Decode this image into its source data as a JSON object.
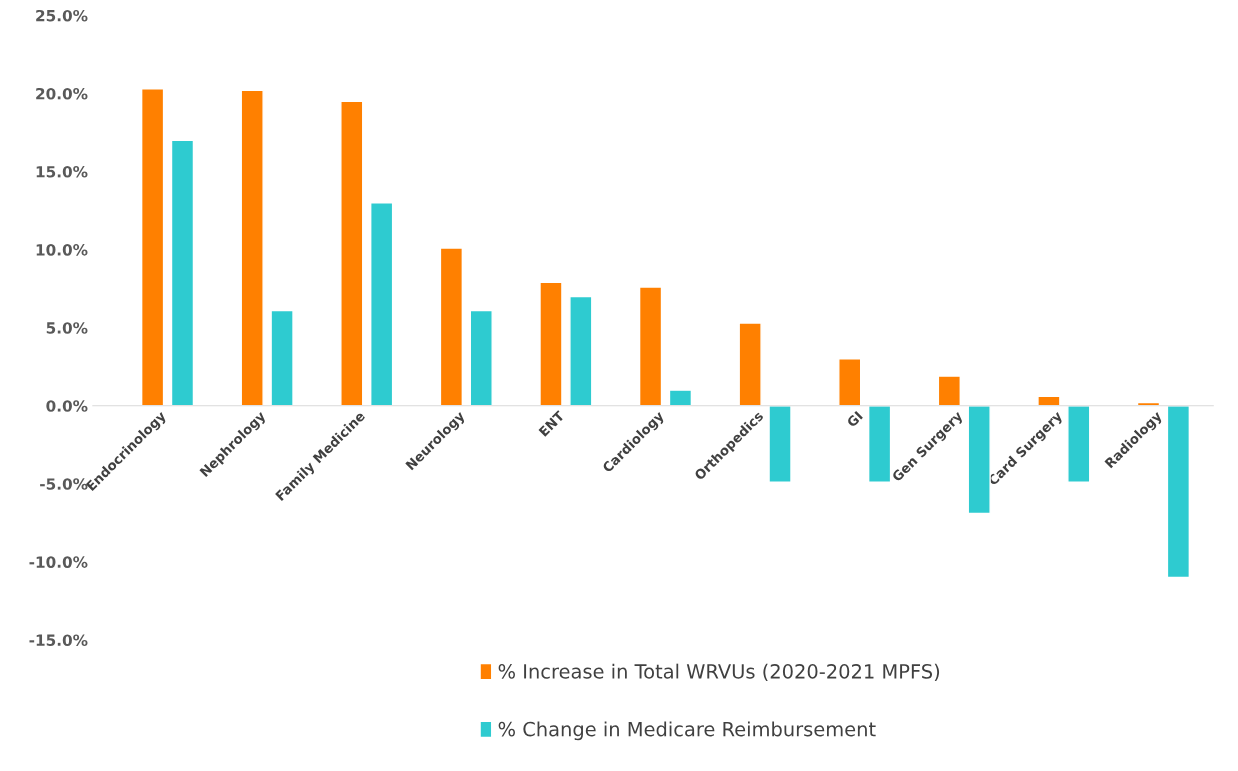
{
  "chart_data": {
    "type": "bar",
    "categories": [
      "Endocrinology",
      "Nephrology",
      "Family Medicine",
      "Neurology",
      "ENT",
      "Cardiology",
      "Orthopedics",
      "GI",
      "Gen Surgery",
      "Card Surgery",
      "Radiology"
    ],
    "series": [
      {
        "name": "% Increase in Total WRVUs (2020-2021 MPFS)",
        "color": "#ff8000",
        "values": [
          20.3,
          20.2,
          19.5,
          10.1,
          7.9,
          7.6,
          5.3,
          3.0,
          1.9,
          0.6,
          0.2
        ]
      },
      {
        "name": "% Change in Medicare Reimbursement",
        "color": "#2ecbd0",
        "values": [
          17.0,
          6.1,
          13.0,
          6.1,
          7.0,
          1.0,
          -4.9,
          -4.9,
          -6.9,
          -4.9,
          -11.0
        ]
      }
    ],
    "ylim": [
      -15,
      25
    ],
    "yticks": [
      {
        "value": -15,
        "label": "-15.0%"
      },
      {
        "value": -10,
        "label": "-10.0%"
      },
      {
        "value": -5,
        "label": "-5.0%"
      },
      {
        "value": 0,
        "label": "0.0%"
      },
      {
        "value": 5,
        "label": "5.0%"
      },
      {
        "value": 10,
        "label": "10.0%"
      },
      {
        "value": 15,
        "label": "15.0%"
      },
      {
        "value": 20,
        "label": "20.0%"
      },
      {
        "value": 25,
        "label": "25.0%"
      }
    ],
    "grid": false,
    "legend": "bottom"
  }
}
